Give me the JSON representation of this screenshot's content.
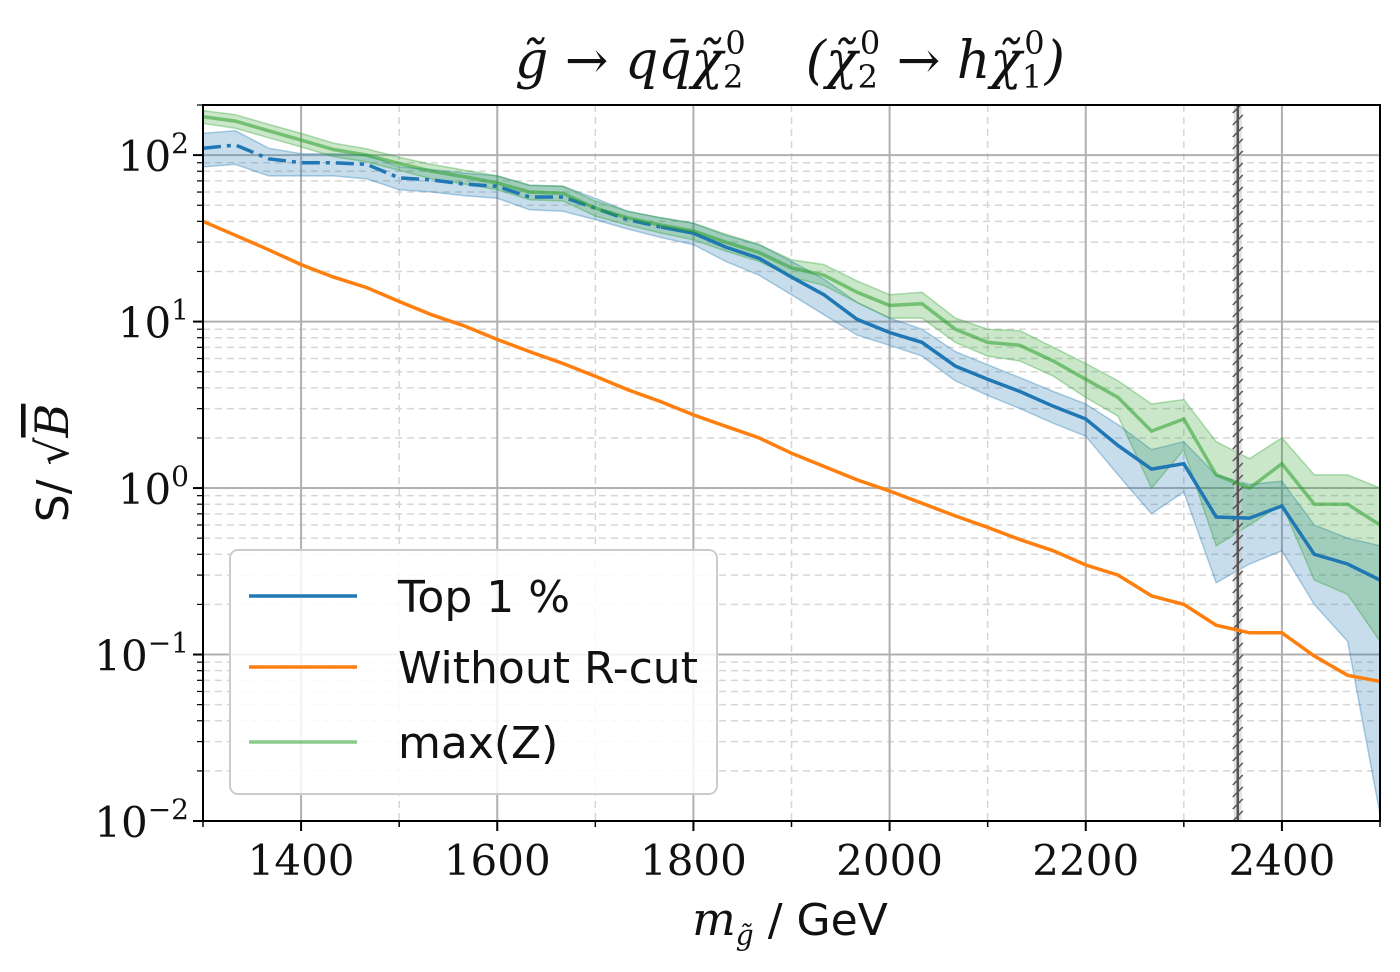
{
  "chart_data": {
    "type": "line",
    "title": "g̃ → qq̄χ̃₂⁰   (χ̃₂⁰ → hχ̃₁⁰)",
    "title_parts": {
      "left": "g̃ → qq̄χ̃",
      "left_sub": "2",
      "left_sup": "0",
      "right_open": "(χ̃",
      "right_sub": "2",
      "right_sup": "0",
      "arrow": " → hχ̃",
      "right_sub2": "1",
      "right_sup2": "0",
      "right_close": ")"
    },
    "xlabel": "m / GeV",
    "xlabel_parts": {
      "m": "m",
      "sub": "g̃",
      "unit": "/ GeV"
    },
    "ylabel": "S/ √B",
    "ylabel_parts": {
      "s": "S/ √",
      "b": "B"
    },
    "xlim": [
      1300,
      2500
    ],
    "ylim": [
      0.01,
      200
    ],
    "yscale": "log",
    "grid": true,
    "legend_placement": "lower-left",
    "x_ticks": [
      1400,
      1600,
      1800,
      2000,
      2200,
      2400
    ],
    "x_tick_labels": [
      "1400",
      "1600",
      "1800",
      "2000",
      "2200",
      "2400"
    ],
    "y_ticks": [
      0.01,
      0.1,
      1,
      10,
      100
    ],
    "y_tick_labels": [
      {
        "base": "10",
        "exp": "−2"
      },
      {
        "base": "10",
        "exp": "−1"
      },
      {
        "base": "10",
        "exp": "0"
      },
      {
        "base": "10",
        "exp": "1"
      },
      {
        "base": "10",
        "exp": "2"
      }
    ],
    "vline_x": 2355,
    "series": [
      {
        "name": "Top 1 %",
        "color": "#1f77b4",
        "x": [
          1300,
          1333,
          1367,
          1400,
          1433,
          1467,
          1500,
          1533,
          1567,
          1600,
          1633,
          1667,
          1700,
          1733,
          1767,
          1800,
          1833,
          1867,
          1900,
          1933,
          1967,
          2000,
          2033,
          2067,
          2100,
          2133,
          2167,
          2200,
          2233,
          2267,
          2300,
          2333,
          2367,
          2400,
          2433,
          2467,
          2500
        ],
        "y": [
          110,
          115,
          95,
          90,
          90,
          88,
          73,
          71,
          67,
          65,
          56,
          56,
          48,
          41,
          37,
          34,
          28,
          24,
          18.5,
          14.5,
          10.3,
          8.6,
          7.5,
          5.4,
          4.5,
          3.8,
          3.1,
          2.6,
          1.8,
          1.3,
          1.4,
          0.67,
          0.66,
          0.78,
          0.4,
          0.35,
          0.28
        ],
        "band_low": [
          85,
          88,
          75,
          75,
          75,
          72,
          62,
          60,
          57,
          55,
          47,
          46,
          41,
          36,
          32,
          29,
          23,
          19,
          14.5,
          11,
          8.3,
          7.2,
          6.2,
          4.4,
          3.6,
          3.0,
          2.45,
          2.05,
          1.2,
          0.7,
          0.95,
          0.27,
          0.35,
          0.42,
          0.2,
          0.12,
          0.011
        ],
        "band_high": [
          135,
          140,
          110,
          102,
          102,
          100,
          85,
          82,
          78,
          75,
          66,
          65,
          55,
          46,
          42,
          39,
          33,
          29,
          23,
          18,
          13,
          10.5,
          9,
          6.6,
          5.5,
          4.6,
          3.8,
          3.2,
          2.4,
          1.7,
          1.9,
          1.2,
          1.05,
          1.1,
          0.6,
          0.5,
          0.45
        ],
        "linestyle_dashdot_until_x": 1790
      },
      {
        "name": "Without R-cut",
        "color": "#ff7f0e",
        "x": [
          1300,
          1333,
          1367,
          1400,
          1433,
          1467,
          1500,
          1533,
          1567,
          1600,
          1633,
          1667,
          1700,
          1733,
          1767,
          1800,
          1833,
          1867,
          1900,
          1933,
          1967,
          2000,
          2033,
          2067,
          2100,
          2133,
          2167,
          2200,
          2233,
          2267,
          2300,
          2333,
          2367,
          2400,
          2433,
          2467,
          2500
        ],
        "y": [
          40,
          33,
          27,
          22,
          18.5,
          16,
          13.2,
          11,
          9.4,
          7.8,
          6.6,
          5.6,
          4.7,
          3.9,
          3.3,
          2.75,
          2.35,
          2.0,
          1.62,
          1.35,
          1.12,
          0.96,
          0.81,
          0.68,
          0.58,
          0.49,
          0.42,
          0.345,
          0.3,
          0.225,
          0.2,
          0.15,
          0.135,
          0.135,
          0.098,
          0.075,
          0.069
        ]
      },
      {
        "name": "max(Z)",
        "color": "#2ca02c",
        "x": [
          1300,
          1333,
          1367,
          1400,
          1433,
          1467,
          1500,
          1533,
          1567,
          1600,
          1633,
          1667,
          1700,
          1733,
          1767,
          1800,
          1833,
          1867,
          1900,
          1933,
          1967,
          2000,
          2033,
          2067,
          2100,
          2133,
          2167,
          2200,
          2233,
          2267,
          2300,
          2333,
          2367,
          2400,
          2433,
          2467,
          2500
        ],
        "y": [
          170,
          160,
          140,
          123,
          108,
          100,
          89,
          80,
          74,
          68,
          60,
          59,
          48,
          42,
          38,
          35,
          30,
          26,
          21,
          19,
          15,
          12.5,
          12.8,
          9,
          7.5,
          7.2,
          5.8,
          4.5,
          3.5,
          2.2,
          2.6,
          1.2,
          1.0,
          1.4,
          0.8,
          0.8,
          0.6
        ],
        "band_low": [
          155,
          145,
          127,
          112,
          98,
          91,
          81,
          72,
          67,
          62,
          54,
          53,
          43,
          38,
          34,
          31,
          26.5,
          23,
          18.5,
          16.5,
          13,
          10.5,
          10.5,
          7.5,
          6.2,
          5.8,
          4.7,
          3.5,
          2.7,
          1.0,
          1.7,
          0.45,
          0.6,
          0.8,
          0.28,
          0.23,
          0.12
        ],
        "band_high": [
          185,
          175,
          153,
          135,
          118,
          109,
          97,
          88,
          81,
          75,
          66,
          65,
          53,
          46,
          42,
          39,
          33.5,
          29,
          23.5,
          22,
          17.5,
          14.5,
          15,
          10.5,
          9,
          8.8,
          7,
          5.6,
          4.4,
          3.2,
          3.4,
          1.9,
          1.5,
          2.0,
          1.2,
          1.2,
          1.0
        ]
      }
    ]
  }
}
